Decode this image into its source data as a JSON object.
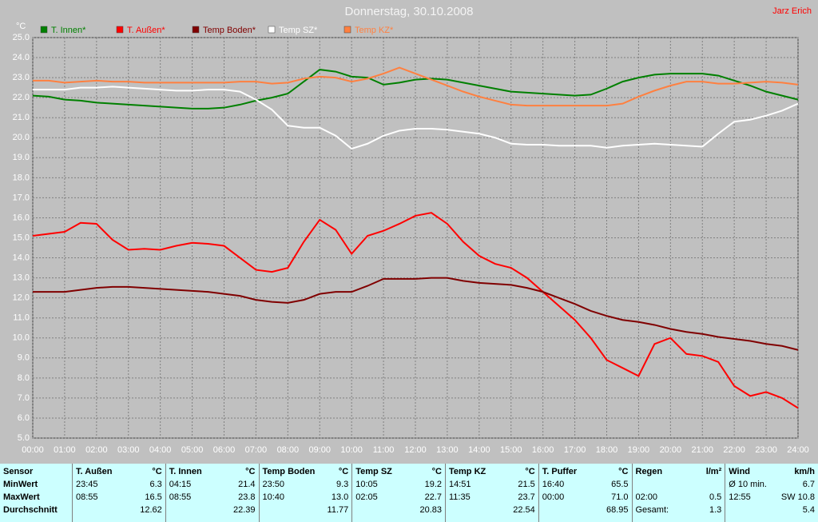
{
  "chart_data": {
    "type": "line",
    "title": "Donnerstag, 30.10.2008",
    "author": "Jarz Erich",
    "y_label": "°C",
    "x": [
      0,
      0.5,
      1,
      1.5,
      2,
      2.5,
      3,
      3.5,
      4,
      4.5,
      5,
      5.5,
      6,
      6.5,
      7,
      7.5,
      8,
      8.5,
      9,
      9.5,
      10,
      10.5,
      11,
      11.5,
      12,
      12.5,
      13,
      13.5,
      14,
      14.5,
      15,
      15.5,
      16,
      16.5,
      17,
      17.5,
      18,
      18.5,
      19,
      19.5,
      20,
      20.5,
      21,
      21.5,
      22,
      22.5,
      23,
      23.5,
      24
    ],
    "xlim": [
      0,
      24
    ],
    "xticks": [
      {
        "value": 0,
        "label": "00:00"
      },
      {
        "value": 1,
        "label": "01:00"
      },
      {
        "value": 2,
        "label": "02:00"
      },
      {
        "value": 3,
        "label": "03:00"
      },
      {
        "value": 4,
        "label": "04:00"
      },
      {
        "value": 5,
        "label": "05:00"
      },
      {
        "value": 6,
        "label": "06:00"
      },
      {
        "value": 7,
        "label": "07:00"
      },
      {
        "value": 8,
        "label": "08:00"
      },
      {
        "value": 9,
        "label": "09:00"
      },
      {
        "value": 10,
        "label": "10:00"
      },
      {
        "value": 11,
        "label": "11:00"
      },
      {
        "value": 12,
        "label": "12:00"
      },
      {
        "value": 13,
        "label": "13:00"
      },
      {
        "value": 14,
        "label": "14:00"
      },
      {
        "value": 15,
        "label": "15:00"
      },
      {
        "value": 16,
        "label": "16:00"
      },
      {
        "value": 17,
        "label": "17:00"
      },
      {
        "value": 18,
        "label": "18:00"
      },
      {
        "value": 19,
        "label": "19:00"
      },
      {
        "value": 20,
        "label": "20:00"
      },
      {
        "value": 21,
        "label": "21:00"
      },
      {
        "value": 22,
        "label": "22:00"
      },
      {
        "value": 23,
        "label": "23:00"
      },
      {
        "value": 24,
        "label": "24:00"
      }
    ],
    "ylim": [
      5,
      25
    ],
    "yticks": [
      {
        "value": 5,
        "label": "5.0"
      },
      {
        "value": 6,
        "label": "6.0"
      },
      {
        "value": 7,
        "label": "7.0"
      },
      {
        "value": 8,
        "label": "8.0"
      },
      {
        "value": 9,
        "label": "9.0"
      },
      {
        "value": 10,
        "label": "10.0"
      },
      {
        "value": 11,
        "label": "11.0"
      },
      {
        "value": 12,
        "label": "12.0"
      },
      {
        "value": 13,
        "label": "13.0"
      },
      {
        "value": 14,
        "label": "14.0"
      },
      {
        "value": 15,
        "label": "15.0"
      },
      {
        "value": 16,
        "label": "16.0"
      },
      {
        "value": 17,
        "label": "17.0"
      },
      {
        "value": 18,
        "label": "18.0"
      },
      {
        "value": 19,
        "label": "19.0"
      },
      {
        "value": 20,
        "label": "20.0"
      },
      {
        "value": 21,
        "label": "21.0"
      },
      {
        "value": 22,
        "label": "22.0"
      },
      {
        "value": 23,
        "label": "23.0"
      },
      {
        "value": 24,
        "label": "24.0"
      },
      {
        "value": 25,
        "label": "25.0"
      }
    ],
    "grid": true,
    "series": [
      {
        "name": "T. Innen*",
        "color": "#008000",
        "values": [
          22.1,
          22.05,
          21.9,
          21.85,
          21.75,
          21.7,
          21.65,
          21.6,
          21.55,
          21.5,
          21.45,
          21.45,
          21.5,
          21.65,
          21.85,
          22.0,
          22.2,
          22.8,
          23.4,
          23.3,
          23.05,
          23.0,
          22.65,
          22.75,
          22.9,
          22.95,
          22.9,
          22.75,
          22.6,
          22.45,
          22.3,
          22.25,
          22.2,
          22.15,
          22.1,
          22.15,
          22.45,
          22.8,
          23.0,
          23.15,
          23.2,
          23.2,
          23.2,
          23.1,
          22.85,
          22.6,
          22.3,
          22.1,
          21.9
        ]
      },
      {
        "name": "T. Außen*",
        "color": "#ff0000",
        "values": [
          15.1,
          15.2,
          15.3,
          15.75,
          15.7,
          14.9,
          14.4,
          14.45,
          14.4,
          14.6,
          14.75,
          14.7,
          14.6,
          14.0,
          13.4,
          13.3,
          13.5,
          14.8,
          15.9,
          15.4,
          14.2,
          15.1,
          15.35,
          15.7,
          16.1,
          16.25,
          15.7,
          14.8,
          14.1,
          13.7,
          13.5,
          13.0,
          12.3,
          11.6,
          10.9,
          10.0,
          8.9,
          8.5,
          8.1,
          9.7,
          10.0,
          9.2,
          9.1,
          8.8,
          7.6,
          7.1,
          7.3,
          7.0,
          6.5
        ]
      },
      {
        "name": "Temp Boden*",
        "color": "#800000",
        "values": [
          12.3,
          12.3,
          12.3,
          12.4,
          12.5,
          12.55,
          12.55,
          12.5,
          12.45,
          12.4,
          12.35,
          12.3,
          12.2,
          12.1,
          11.9,
          11.8,
          11.75,
          11.9,
          12.2,
          12.3,
          12.3,
          12.6,
          12.95,
          12.95,
          12.95,
          13.0,
          13.0,
          12.85,
          12.75,
          12.7,
          12.65,
          12.5,
          12.3,
          12.0,
          11.7,
          11.35,
          11.1,
          10.9,
          10.8,
          10.65,
          10.45,
          10.3,
          10.2,
          10.05,
          9.95,
          9.85,
          9.7,
          9.6,
          9.4
        ]
      },
      {
        "name": "Temp SZ*",
        "color": "#ffffff",
        "values": [
          22.4,
          22.4,
          22.4,
          22.5,
          22.5,
          22.55,
          22.5,
          22.45,
          22.4,
          22.35,
          22.35,
          22.4,
          22.4,
          22.3,
          21.9,
          21.4,
          20.6,
          20.5,
          20.5,
          20.1,
          19.45,
          19.7,
          20.1,
          20.35,
          20.45,
          20.45,
          20.4,
          20.3,
          20.2,
          20.0,
          19.7,
          19.65,
          19.65,
          19.6,
          19.6,
          19.6,
          19.5,
          19.6,
          19.65,
          19.7,
          19.65,
          19.6,
          19.55,
          20.2,
          20.8,
          20.9,
          21.1,
          21.35,
          21.7
        ]
      },
      {
        "name": "Temp KZ*",
        "color": "#ff8040",
        "values": [
          22.85,
          22.85,
          22.75,
          22.8,
          22.85,
          22.8,
          22.8,
          22.75,
          22.75,
          22.75,
          22.75,
          22.75,
          22.75,
          22.8,
          22.8,
          22.7,
          22.75,
          22.95,
          23.05,
          23.0,
          22.8,
          22.95,
          23.2,
          23.5,
          23.2,
          22.9,
          22.6,
          22.3,
          22.05,
          21.85,
          21.65,
          21.6,
          21.6,
          21.6,
          21.6,
          21.6,
          21.6,
          21.7,
          22.05,
          22.35,
          22.6,
          22.8,
          22.8,
          22.7,
          22.7,
          22.75,
          22.8,
          22.75,
          22.65
        ]
      }
    ]
  },
  "table": {
    "header": "Sensor",
    "row_labels": [
      "MinWert",
      "MaxWert",
      "Durchschnitt"
    ],
    "sensors": [
      {
        "name": "T. Außen",
        "unit": "°C",
        "rows": [
          [
            "23:45",
            "6.3"
          ],
          [
            "08:55",
            "16.5"
          ],
          [
            "12.62"
          ]
        ]
      },
      {
        "name": "T. Innen",
        "unit": "°C",
        "rows": [
          [
            "04:15",
            "21.4"
          ],
          [
            "08:55",
            "23.8"
          ],
          [
            "22.39"
          ]
        ]
      },
      {
        "name": "Temp Boden",
        "unit": "°C",
        "rows": [
          [
            "23:50",
            "9.3"
          ],
          [
            "10:40",
            "13.0"
          ],
          [
            "11.77"
          ]
        ]
      },
      {
        "name": "Temp SZ",
        "unit": "°C",
        "rows": [
          [
            "10:05",
            "19.2"
          ],
          [
            "02:05",
            "22.7"
          ],
          [
            "20.83"
          ]
        ]
      },
      {
        "name": "Temp KZ",
        "unit": "°C",
        "rows": [
          [
            "14:51",
            "21.5"
          ],
          [
            "11:35",
            "23.7"
          ],
          [
            "22.54"
          ]
        ]
      },
      {
        "name": "T. Puffer",
        "unit": "°C",
        "rows": [
          [
            "16:40",
            "65.5"
          ],
          [
            "00:00",
            "71.0"
          ],
          [
            "68.95"
          ]
        ]
      },
      {
        "name": "Regen",
        "unit": "l/m²",
        "rows": [
          [],
          [
            "02:00",
            "0.5"
          ],
          [
            "Gesamt:",
            "1.3"
          ]
        ]
      },
      {
        "name": "Wind",
        "unit": "km/h",
        "rows": [
          [
            "Ø 10 min.",
            "6.7"
          ],
          [
            "12:55",
            "SW 10.8"
          ],
          [
            "5.4"
          ]
        ]
      }
    ]
  }
}
